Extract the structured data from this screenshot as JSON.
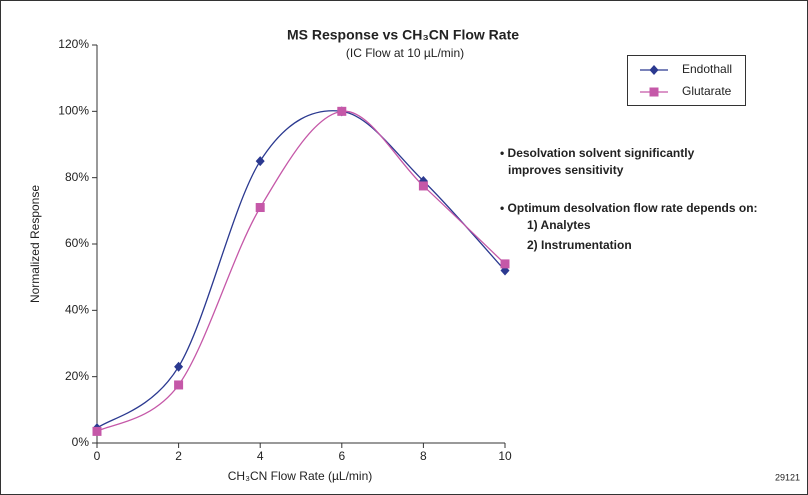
{
  "chart_data": {
    "type": "line",
    "title": "MS Response vs CH₃CN Flow Rate",
    "subtitle": "(IC Flow at 10 µL/min)",
    "x_label": "CH₃CN Flow Rate (µL/min)",
    "y_label": "Normalized Response",
    "x": [
      0,
      2,
      4,
      6,
      8,
      10
    ],
    "series": [
      {
        "name": "Endothall",
        "color": "#2b3990",
        "marker": "diamond",
        "values": [
          4.5,
          23,
          85,
          100,
          79,
          52
        ]
      },
      {
        "name": "Glutarate",
        "color": "#c558a8",
        "marker": "square",
        "values": [
          3.5,
          17.5,
          71,
          100,
          77.5,
          54
        ]
      }
    ],
    "xlim": [
      0,
      10
    ],
    "xticks": [
      0,
      2,
      4,
      6,
      8,
      10
    ],
    "ylim": [
      0,
      120
    ],
    "yticks": [
      {
        "value": 0,
        "label": "0%"
      },
      {
        "value": 20,
        "label": "20%"
      },
      {
        "value": 40,
        "label": "40%"
      },
      {
        "value": 60,
        "label": "60%"
      },
      {
        "value": 80,
        "label": "80%"
      },
      {
        "value": 100,
        "label": "100%"
      },
      {
        "value": 120,
        "label": "120%"
      }
    ],
    "legend": "upper right",
    "annotations": [
      "• Desolvation solvent significantly",
      "improves sensitivity",
      "• Optimum desolvation flow rate depends on:",
      "1) Analytes",
      "2) Instrumentation"
    ],
    "figure_id": "29121"
  }
}
